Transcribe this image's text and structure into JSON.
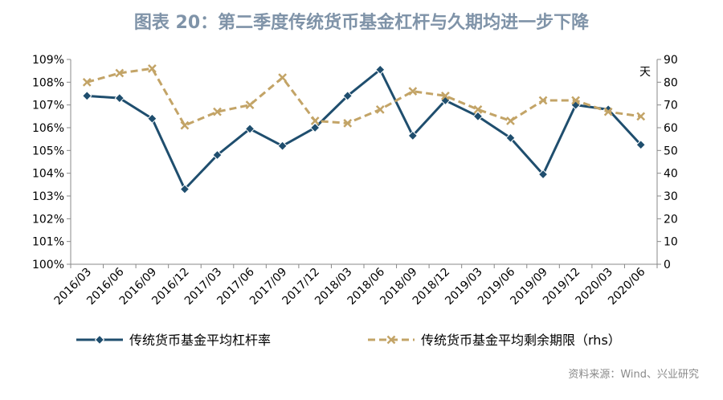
{
  "title": "图表 20：第二季度传统货币基金杠杆与久期均进一步下降",
  "source": "资料来源：Wind、兴业研究",
  "chart_data": {
    "type": "line",
    "categories": [
      "2016/03",
      "2016/06",
      "2016/09",
      "2016/12",
      "2017/03",
      "2017/06",
      "2017/09",
      "2017/12",
      "2018/03",
      "2018/06",
      "2018/09",
      "2018/12",
      "2019/03",
      "2019/06",
      "2019/09",
      "2019/12",
      "2020/03",
      "2020/06"
    ],
    "y_left": {
      "min": 100,
      "max": 109,
      "step": 1,
      "suffix": "%",
      "ticks": [
        "100%",
        "101%",
        "102%",
        "103%",
        "104%",
        "105%",
        "106%",
        "107%",
        "108%",
        "109%"
      ]
    },
    "y_right": {
      "min": 0,
      "max": 90,
      "step": 10,
      "unit_label": "天",
      "ticks": [
        "0",
        "10",
        "20",
        "30",
        "40",
        "50",
        "60",
        "70",
        "80",
        "90"
      ]
    },
    "series": [
      {
        "name": "传统货币基金平均杠杆率",
        "axis": "left",
        "color": "#1f4e6e",
        "style": "solid",
        "marker": "diamond",
        "values": [
          107.4,
          107.3,
          106.4,
          103.3,
          104.8,
          105.95,
          105.2,
          106.0,
          107.4,
          108.55,
          105.65,
          107.2,
          106.5,
          105.55,
          103.95,
          107.0,
          106.8,
          105.25
        ]
      },
      {
        "name": "传统货币基金平均剩余期限（rhs）",
        "axis": "right",
        "color": "#c3a467",
        "style": "dashed",
        "marker": "x",
        "values": [
          80,
          84,
          86,
          61,
          67,
          70,
          82,
          63,
          62,
          68,
          76,
          74,
          68,
          63,
          72,
          72,
          67,
          65
        ]
      }
    ],
    "grid": false,
    "legend_position": "bottom"
  }
}
